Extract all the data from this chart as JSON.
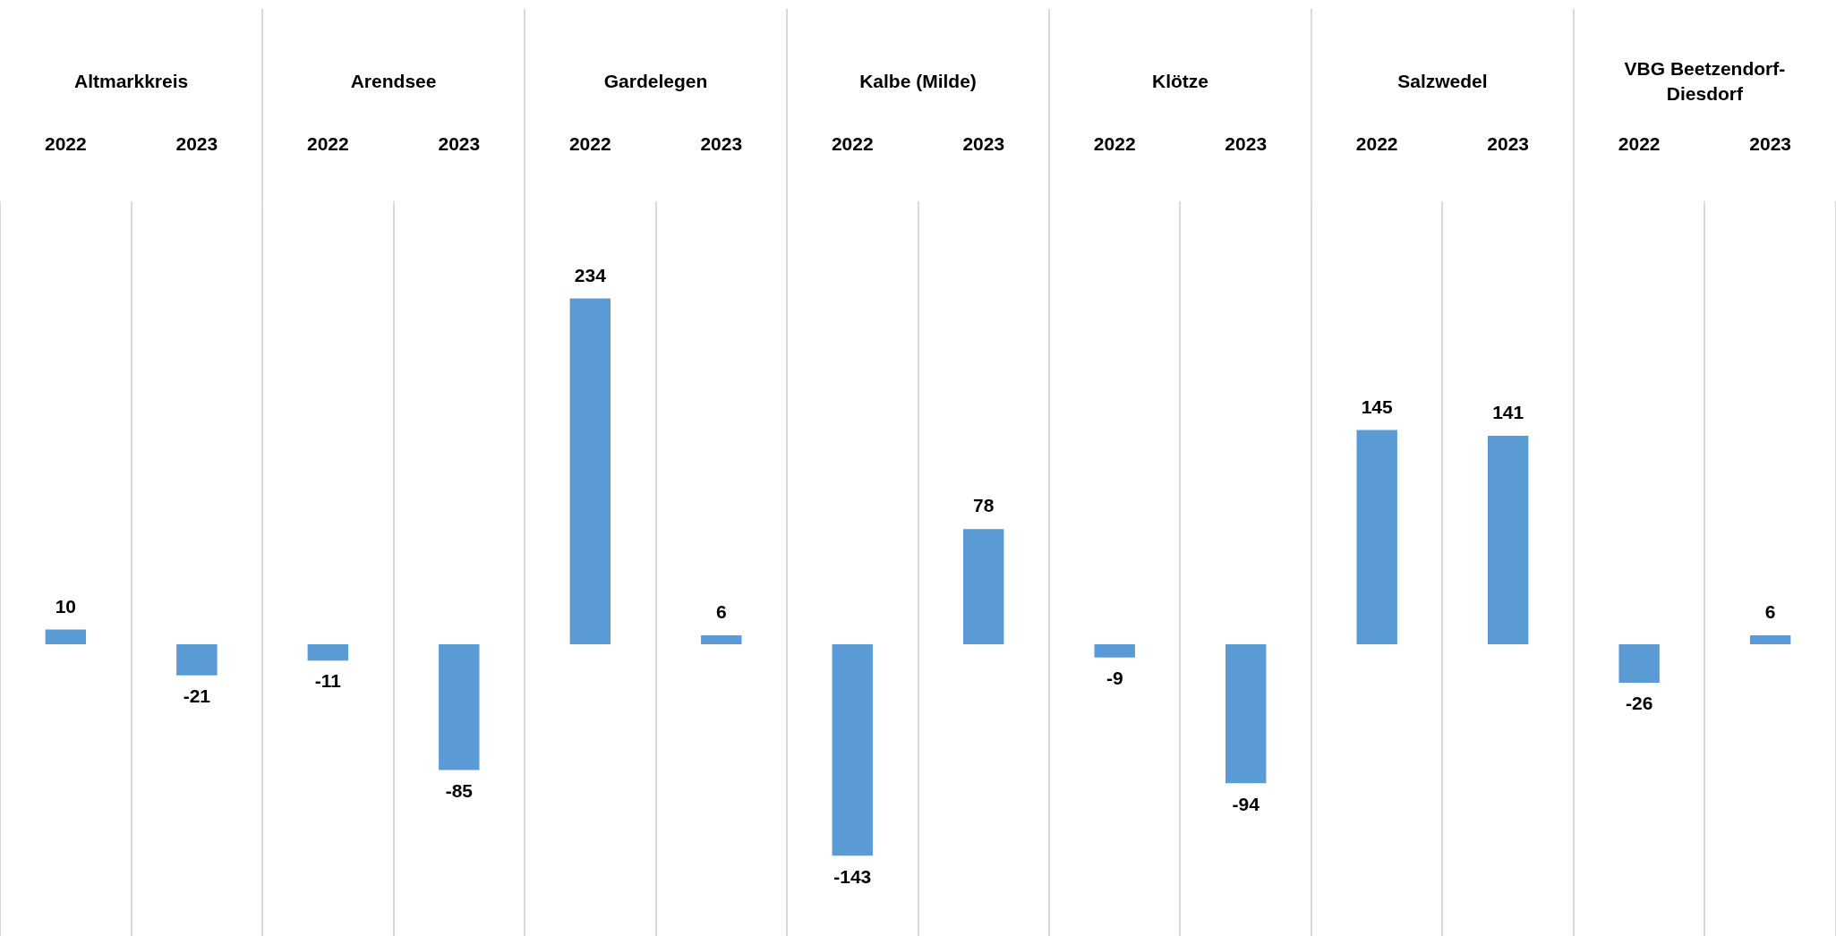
{
  "chart_data": {
    "type": "bar",
    "categories": [
      "2022",
      "2023",
      "2022",
      "2023",
      "2022",
      "2023",
      "2022",
      "2023",
      "2022",
      "2023",
      "2022",
      "2023",
      "2022",
      "2023"
    ],
    "values": [
      10,
      -21,
      -11,
      -85,
      234,
      6,
      -143,
      78,
      -9,
      -94,
      145,
      141,
      -26,
      6
    ],
    "color": "#5b9bd5",
    "data_labels": true,
    "grid": "x",
    "legend": false,
    "tick_labels": "x",
    "annotations": [
      "Altmarkkreis",
      "Arendsee",
      "Gardelegen",
      "Kalbe (Milde)",
      "Klötze",
      "Salzwedel",
      "VBG Beetzendorf-Diesdorf"
    ]
  }
}
